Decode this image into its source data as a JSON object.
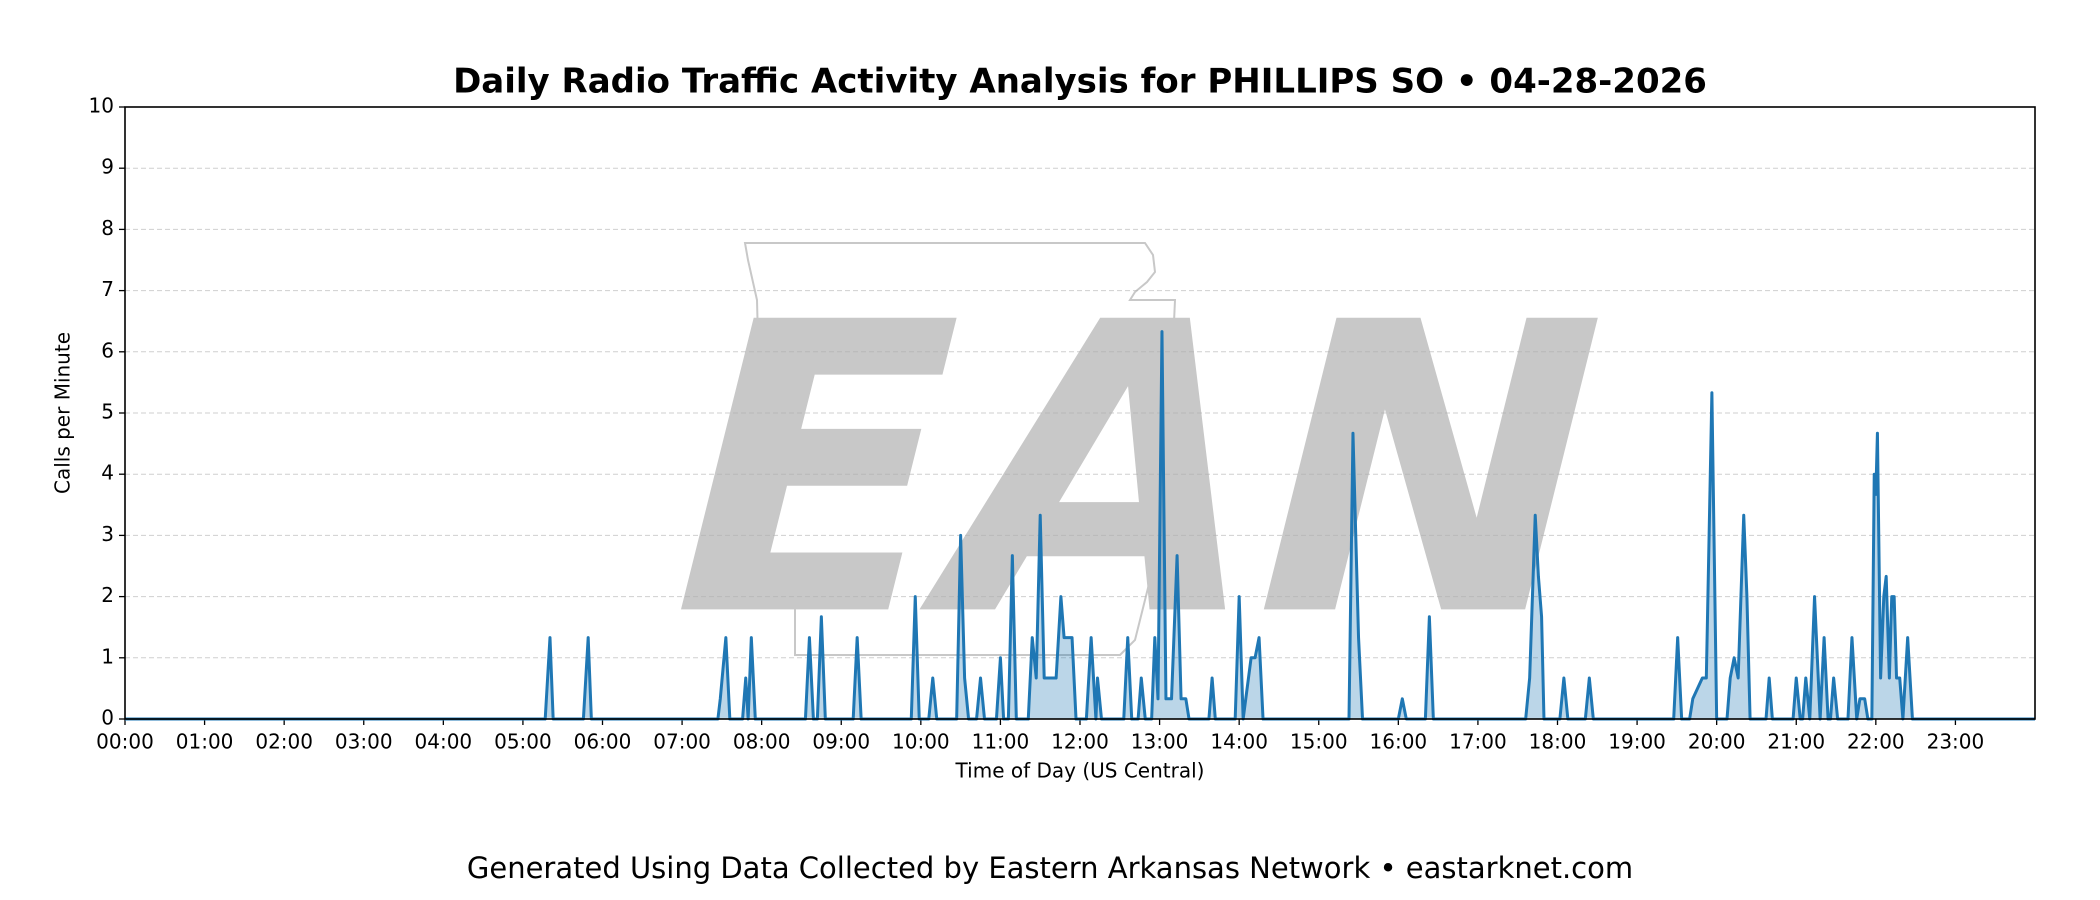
{
  "chart_data": {
    "type": "line",
    "title": "Daily Radio Traffic Activity Analysis for PHILLIPS SO • 04-28-2026",
    "xlabel": "Time of Day (US Central)",
    "ylabel": "Calls per Minute",
    "footer": "Generated Using Data Collected by Eastern Arkansas Network • eastarknet.com",
    "watermark": "EAN",
    "xlim": [
      0,
      24
    ],
    "ylim": [
      0,
      10
    ],
    "yticks": [
      0,
      1,
      2,
      3,
      4,
      5,
      6,
      7,
      8,
      9,
      10
    ],
    "xticks": [
      {
        "value": 0,
        "label": "00:00"
      },
      {
        "value": 1,
        "label": "01:00"
      },
      {
        "value": 2,
        "label": "02:00"
      },
      {
        "value": 3,
        "label": "03:00"
      },
      {
        "value": 4,
        "label": "04:00"
      },
      {
        "value": 5,
        "label": "05:00"
      },
      {
        "value": 6,
        "label": "06:00"
      },
      {
        "value": 7,
        "label": "07:00"
      },
      {
        "value": 8,
        "label": "08:00"
      },
      {
        "value": 9,
        "label": "09:00"
      },
      {
        "value": 10,
        "label": "10:00"
      },
      {
        "value": 11,
        "label": "11:00"
      },
      {
        "value": 12,
        "label": "12:00"
      },
      {
        "value": 13,
        "label": "13:00"
      },
      {
        "value": 14,
        "label": "14:00"
      },
      {
        "value": 15,
        "label": "15:00"
      },
      {
        "value": 16,
        "label": "16:00"
      },
      {
        "value": 17,
        "label": "17:00"
      },
      {
        "value": 18,
        "label": "18:00"
      },
      {
        "value": 19,
        "label": "19:00"
      },
      {
        "value": 20,
        "label": "20:00"
      },
      {
        "value": 21,
        "label": "21:00"
      },
      {
        "value": 22,
        "label": "22:00"
      },
      {
        "value": 23,
        "label": "23:00"
      }
    ],
    "grid": true,
    "color": "#1f77b4",
    "x": [
      0,
      5.28,
      5.34,
      5.38,
      5.76,
      5.82,
      5.86,
      7.45,
      7.48,
      7.55,
      7.6,
      7.76,
      7.8,
      7.83,
      7.87,
      7.92,
      8.55,
      8.6,
      8.65,
      8.7,
      8.75,
      8.8,
      9.15,
      9.2,
      9.25,
      9.88,
      9.93,
      9.98,
      10.1,
      10.15,
      10.2,
      10.45,
      10.5,
      10.55,
      10.6,
      10.7,
      10.75,
      10.8,
      10.95,
      11.0,
      11.04,
      11.1,
      11.15,
      11.2,
      11.35,
      11.4,
      11.45,
      11.5,
      11.55,
      11.6,
      11.65,
      11.7,
      11.76,
      11.8,
      11.9,
      11.95,
      12.08,
      12.14,
      12.2,
      12.22,
      12.27,
      12.55,
      12.6,
      12.65,
      12.73,
      12.77,
      12.82,
      12.9,
      12.94,
      12.98,
      13.03,
      13.08,
      13.15,
      13.22,
      13.27,
      13.33,
      13.37,
      13.62,
      13.66,
      13.7,
      13.95,
      14.0,
      14.05,
      14.15,
      14.2,
      14.25,
      14.3,
      15.38,
      15.43,
      15.5,
      15.55,
      16.0,
      16.05,
      16.1,
      16.34,
      16.39,
      16.44,
      17.6,
      17.65,
      17.72,
      17.76,
      17.8,
      17.83,
      18.03,
      18.08,
      18.13,
      18.35,
      18.4,
      18.45,
      19.46,
      19.51,
      19.56,
      19.66,
      19.7,
      19.82,
      19.87,
      19.94,
      20.0,
      20.13,
      20.17,
      20.22,
      20.27,
      20.34,
      20.38,
      20.42,
      20.62,
      20.66,
      20.7,
      20.96,
      21.0,
      21.05,
      21.08,
      21.12,
      21.17,
      21.23,
      21.3,
      21.35,
      21.4,
      21.43,
      21.47,
      21.52,
      21.65,
      21.7,
      21.76,
      21.8,
      21.86,
      21.9,
      21.95,
      21.98,
      22.0,
      22.02,
      22.06,
      22.1,
      22.13,
      22.17,
      22.2,
      22.23,
      22.26,
      22.3,
      22.34,
      22.4,
      22.46,
      24
    ],
    "values": [
      0,
      0,
      1.33,
      0,
      0,
      1.33,
      0,
      0,
      0.33,
      1.33,
      0,
      0,
      0.67,
      0,
      1.33,
      0,
      0,
      1.33,
      0,
      0,
      1.67,
      0,
      0,
      1.33,
      0,
      0,
      2,
      0,
      0,
      0.67,
      0,
      0,
      3,
      0.67,
      0,
      0,
      0.67,
      0,
      0,
      1,
      0,
      0,
      2.67,
      0,
      0,
      1.33,
      0.67,
      3.33,
      0.67,
      0.67,
      0.67,
      0.67,
      2,
      1.33,
      1.33,
      0,
      0,
      1.33,
      0,
      0.67,
      0,
      0,
      1.33,
      0,
      0,
      0.67,
      0,
      0,
      1.33,
      0.33,
      6.33,
      0.33,
      0.33,
      2.67,
      0.33,
      0.33,
      0,
      0,
      0.67,
      0,
      0,
      2,
      0,
      1,
      1,
      1.33,
      0,
      0,
      4.67,
      1.33,
      0,
      0,
      0.33,
      0,
      0,
      1.67,
      0,
      0,
      0.67,
      3.33,
      2.33,
      1.67,
      0,
      0,
      0.67,
      0,
      0,
      0.67,
      0,
      0,
      1.33,
      0,
      0,
      0.33,
      0.67,
      0.67,
      5.33,
      0,
      0,
      0.67,
      1,
      0.67,
      3.33,
      2,
      0,
      0,
      0.67,
      0,
      0,
      0.67,
      0,
      0,
      0.67,
      0,
      2,
      0,
      1.33,
      0,
      0,
      0.67,
      0,
      0,
      1.33,
      0,
      0.33,
      0.33,
      0,
      0,
      4,
      3.67,
      4.67,
      0.67,
      2,
      2.33,
      0.67,
      2,
      2,
      0.67,
      0.67,
      0,
      1.33,
      0,
      0
    ]
  }
}
